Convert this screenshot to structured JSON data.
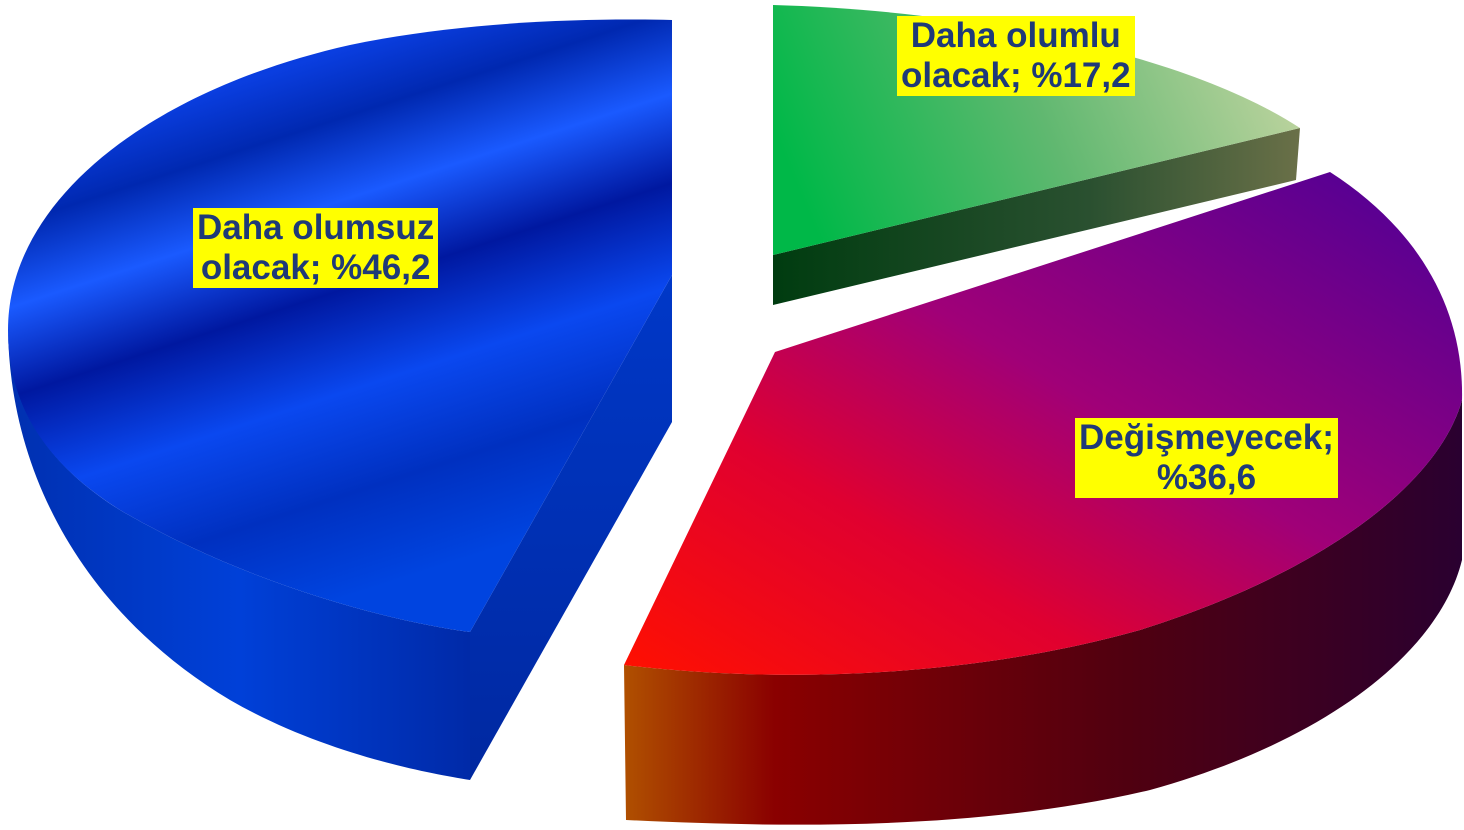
{
  "chart_data": {
    "type": "pie",
    "style": "3d-exploded",
    "slices": [
      {
        "label": "Daha olumlu olacak",
        "value": 17.2,
        "label_lines": [
          "Daha olumlu",
          "olacak; %17,2"
        ]
      },
      {
        "label": "Değişmeyecek",
        "value": 36.6,
        "label_lines": [
          "Değişmeyecek;",
          "%36,6"
        ]
      },
      {
        "label": "Daha olumsuz olacak",
        "value": 46.2,
        "label_lines": [
          "Daha olumsuz",
          "olacak; %46,2"
        ]
      }
    ],
    "colors": {
      "olumlu": [
        "#00c050",
        "#b8d098"
      ],
      "degismeyecek": [
        "#ff0000",
        "#5a00a0"
      ],
      "olumsuz": [
        "#0030b0",
        "#0a50ff"
      ],
      "label_bg": "#ffff00",
      "label_text": "#1f3a78"
    },
    "legend": "none"
  }
}
